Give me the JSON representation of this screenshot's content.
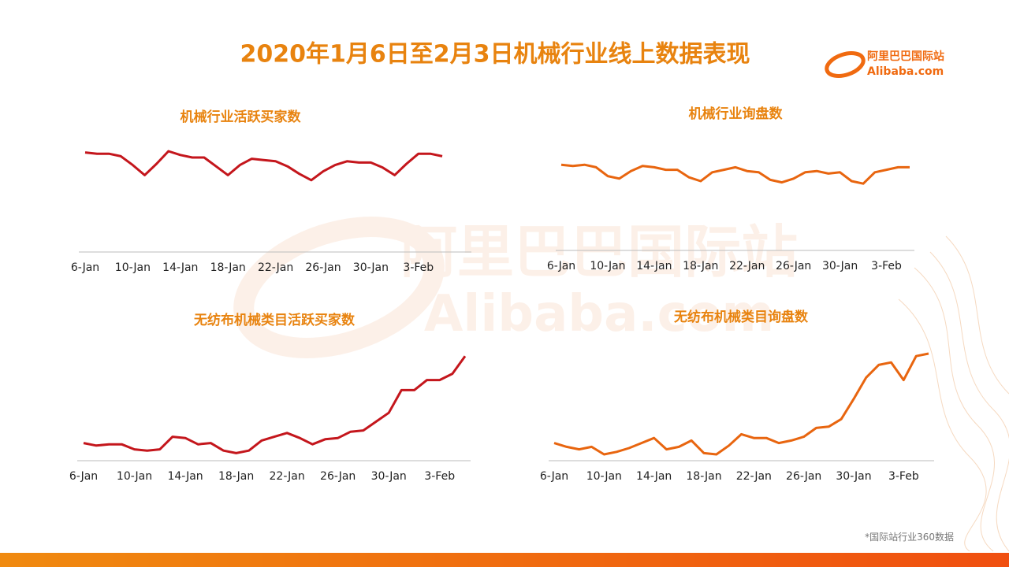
{
  "header": {
    "title": "2020年1月6日至2月3日机械行业线上数据表现",
    "logo_cn": "阿里巴巴国际站",
    "logo_en": "Alibaba.com"
  },
  "footnote": "*国际站行业360数据",
  "chart_data": [
    {
      "type": "line",
      "title": "机械行业活跃买家数",
      "color": "#c4161c",
      "ylim": [
        0,
        100
      ],
      "categories": [
        "6-Jan",
        null,
        null,
        null,
        "10-Jan",
        null,
        null,
        null,
        "14-Jan",
        null,
        null,
        null,
        "18-Jan",
        null,
        null,
        null,
        "22-Jan",
        null,
        null,
        null,
        "26-Jan",
        null,
        null,
        null,
        "30-Jan",
        null,
        null,
        null,
        "3-Feb",
        null,
        null
      ],
      "values": [
        79,
        78,
        78,
        76,
        69,
        61,
        70,
        80,
        77,
        75,
        75,
        68,
        61,
        69,
        74,
        73,
        72,
        68,
        62,
        57,
        64,
        69,
        72,
        71,
        71,
        67,
        61,
        70,
        78,
        78,
        76
      ]
    },
    {
      "type": "line",
      "title": "机械行业询盘数",
      "color": "#e8650f",
      "ylim": [
        0,
        100
      ],
      "categories": [
        "6-Jan",
        null,
        null,
        null,
        "10-Jan",
        null,
        null,
        null,
        "14-Jan",
        null,
        null,
        null,
        "18-Jan",
        null,
        null,
        null,
        "22-Jan",
        null,
        null,
        null,
        "26-Jan",
        null,
        null,
        null,
        "30-Jan",
        null,
        null,
        null,
        "3-Feb",
        null,
        null
      ],
      "values": [
        68,
        67,
        68,
        66,
        59,
        57,
        63,
        67,
        66,
        64,
        64,
        58,
        55,
        62,
        64,
        66,
        63,
        62,
        56,
        54,
        57,
        62,
        63,
        61,
        62,
        55,
        53,
        62,
        64,
        66,
        66
      ]
    },
    {
      "type": "line",
      "title": "无纺布机械类目活跃买家数",
      "color": "#c4161c",
      "ylim": [
        0,
        100
      ],
      "categories": [
        "6-Jan",
        null,
        null,
        null,
        "10-Jan",
        null,
        null,
        null,
        "14-Jan",
        null,
        null,
        null,
        "18-Jan",
        null,
        null,
        null,
        "22-Jan",
        null,
        null,
        null,
        "26-Jan",
        null,
        null,
        null,
        "30-Jan",
        null,
        null,
        null,
        "3-Feb",
        null,
        null
      ],
      "values": [
        14,
        12,
        13,
        13,
        9,
        8,
        9,
        19,
        18,
        13,
        14,
        8,
        6,
        8,
        16,
        19,
        22,
        18,
        13,
        17,
        18,
        23,
        24,
        31,
        38,
        56,
        56,
        64,
        64,
        69,
        83
      ]
    },
    {
      "type": "line",
      "title": "无纺布机械类目询盘数",
      "color": "#e8650f",
      "ylim": [
        0,
        100
      ],
      "categories": [
        "6-Jan",
        null,
        null,
        null,
        "10-Jan",
        null,
        null,
        null,
        "14-Jan",
        null,
        null,
        null,
        "18-Jan",
        null,
        null,
        null,
        "22-Jan",
        null,
        null,
        null,
        "26-Jan",
        null,
        null,
        null,
        "30-Jan",
        null,
        null,
        null,
        "3-Feb",
        null,
        null
      ],
      "values": [
        14,
        11,
        9,
        11,
        5,
        7,
        10,
        14,
        18,
        9,
        11,
        16,
        6,
        5,
        12,
        21,
        18,
        18,
        14,
        16,
        19,
        26,
        27,
        33,
        49,
        66,
        76,
        78,
        64,
        83,
        85
      ]
    }
  ]
}
